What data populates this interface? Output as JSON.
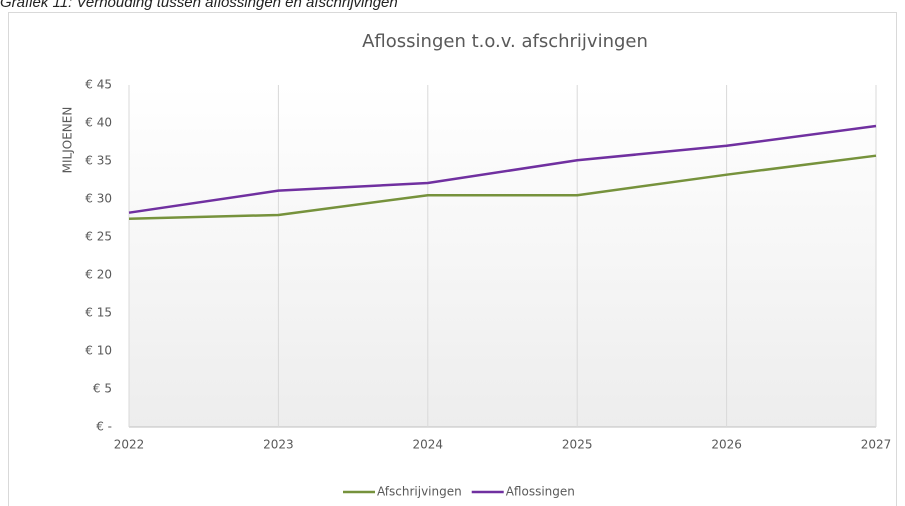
{
  "caption": "Grafiek 11: Verhouding tussen aflossingen en afschrijvingen",
  "chart_data": {
    "type": "line",
    "title": "Aflossingen t.o.v. afschrijvingen",
    "y_label": "MILJOENEN",
    "categories": [
      "2022",
      "2023",
      "2024",
      "2025",
      "2026",
      "2027"
    ],
    "series": [
      {
        "name": "Afschrijvingen",
        "color": "#76923c",
        "values": [
          27.4,
          27.9,
          30.5,
          30.5,
          33.2,
          35.7
        ]
      },
      {
        "name": "Aflossingen",
        "color": "#7030a0",
        "values": [
          28.2,
          31.1,
          32.1,
          35.1,
          37.0,
          39.6
        ]
      }
    ],
    "ylim": [
      0,
      45
    ],
    "yticks": [
      {
        "value": 0,
        "label": "€ -"
      },
      {
        "value": 5,
        "label": "€ 5"
      },
      {
        "value": 10,
        "label": "€ 10"
      },
      {
        "value": 15,
        "label": "€ 15"
      },
      {
        "value": 20,
        "label": "€ 20"
      },
      {
        "value": 25,
        "label": "€ 25"
      },
      {
        "value": 30,
        "label": "€ 30"
      },
      {
        "value": 35,
        "label": "€ 35"
      },
      {
        "value": 40,
        "label": "€ 40"
      },
      {
        "value": 45,
        "label": "€ 45"
      }
    ],
    "grid": "x",
    "legend": "bottom"
  }
}
